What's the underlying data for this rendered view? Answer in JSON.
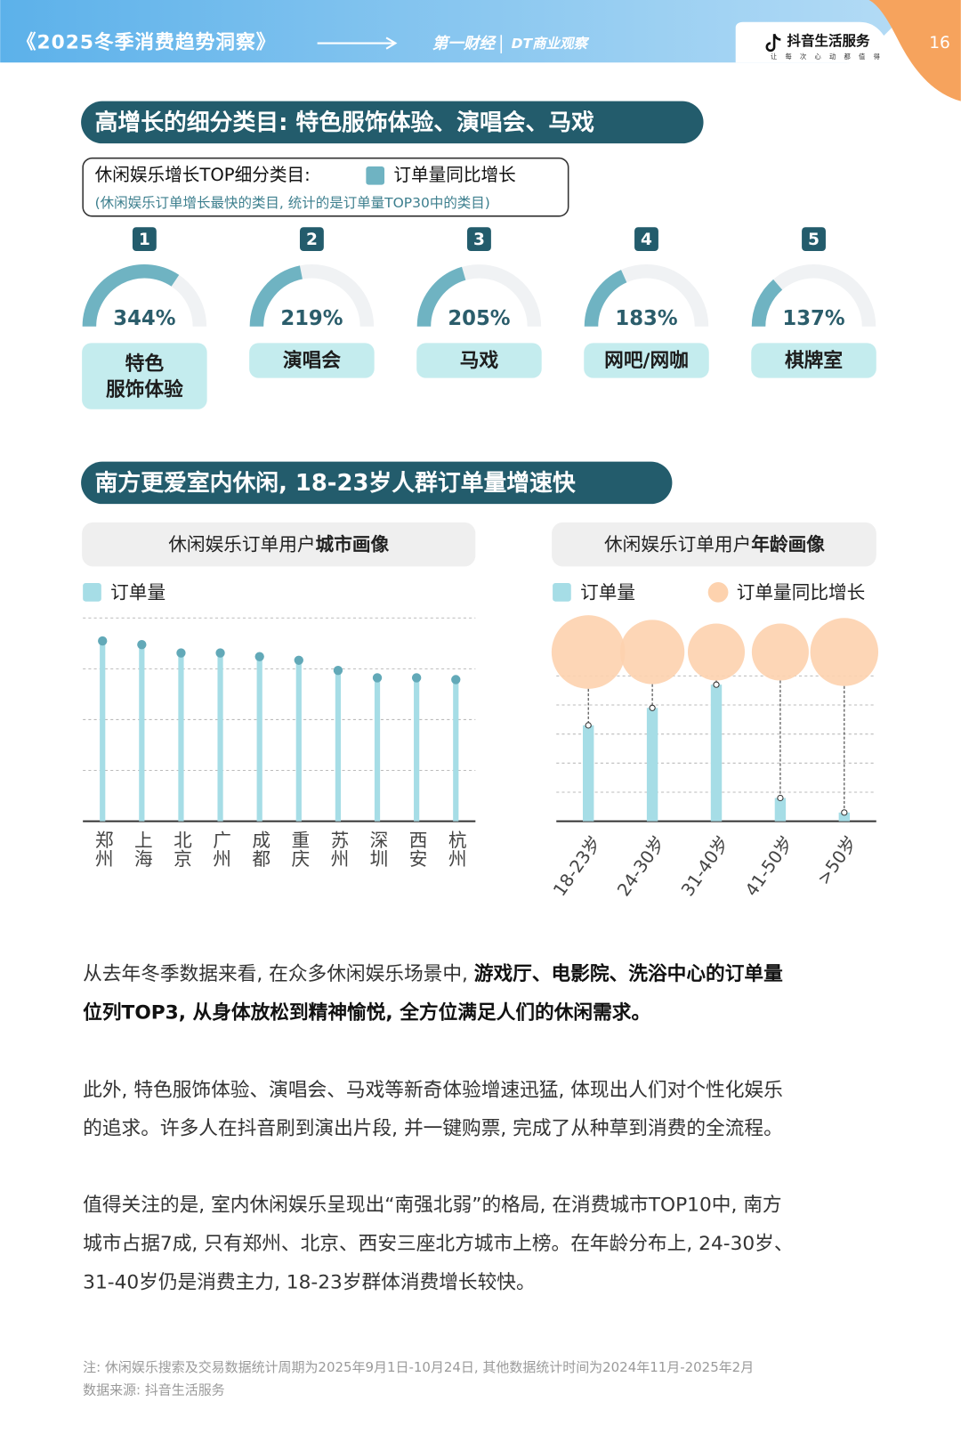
{
  "header": {
    "title": "《2025冬季消费趋势洞察》",
    "logo1": "第一财经",
    "logo2": "DT商业观察",
    "brand": "抖音生活服务",
    "tagline": "让每次心动都值得",
    "page": "16"
  },
  "sections": [
    {
      "title": "高增长的细分类目: 特色服饰体验、演唱会、马戏"
    },
    {
      "title": "南方更爱室内休闲, 18-23岁人群订单量增速快"
    }
  ],
  "chart_data": [
    {
      "type": "gauge",
      "title": "休闲娱乐增长TOP细分类目:",
      "subtitle": "(休闲娱乐订单增长最快的类目, 统计的是订单量TOP30中的类目)",
      "series_name": "订单量同比增长",
      "color": "#6fb3c2",
      "ranks": [
        1,
        2,
        3,
        4,
        5
      ],
      "categories": [
        "特色\n服饰体验",
        "演唱会",
        "马戏",
        "网吧/网咖",
        "棋牌室"
      ],
      "values": [
        344,
        219,
        205,
        183,
        137
      ],
      "value_labels": [
        "344%",
        "219%",
        "205%",
        "183%",
        "137%"
      ],
      "ylim": [
        0,
        500
      ]
    },
    {
      "type": "lollipop",
      "title": [
        "休闲娱乐订单用户",
        "城市画像"
      ],
      "categories": [
        "郑州",
        "上海",
        "北京",
        "广州",
        "成都",
        "重庆",
        "苏州",
        "深圳",
        "西安",
        "杭州"
      ],
      "series": [
        {
          "name": "订单量",
          "color": "#a6dde6",
          "values": [
            88.7,
            86.9,
            82.8,
            82.8,
            81,
            79.2,
            74.2,
            70.6,
            70.6,
            69.7
          ]
        }
      ],
      "ylim": [
        0,
        100
      ],
      "yticks": [
        25,
        50,
        75,
        100
      ],
      "grid": true
    },
    {
      "type": "bar_bubble",
      "title": [
        "休闲娱乐订单用户",
        "年龄画像"
      ],
      "categories": [
        "18-23岁",
        "24-30岁",
        "31-40岁",
        "41-50岁",
        ">50岁"
      ],
      "series": [
        {
          "name": "订单量",
          "color": "#a6dde6",
          "values": [
            3.3,
            3.9,
            4.7,
            0.8,
            0.3
          ]
        },
        {
          "name": "订单量同比增长",
          "color": "#fdd2ae",
          "values": [
            40,
            35,
            31,
            31,
            37
          ]
        }
      ],
      "ylim": [
        0,
        5
      ],
      "yticks": [
        1,
        2,
        3,
        4,
        5
      ],
      "grid": true
    }
  ],
  "paragraphs": [
    [
      [
        {
          "text": "从去年冬季数据来看, 在众多休闲娱乐场景中, ",
          "bold": false
        },
        {
          "text": "游戏厅、电影院、洗浴中心的订单量",
          "bold": true
        }
      ],
      [
        {
          "text": "位列TOP3, 从身体放松到精神愉悦, 全方位满足人们的休闲需求。",
          "bold": true
        }
      ]
    ],
    [
      [
        {
          "text": "此外, 特色服饰体验、演唱会、马戏等新奇体验增速迅猛, 体现出人们对个性化娱乐",
          "bold": false
        }
      ],
      [
        {
          "text": "的追求。许多人在抖音刷到演出片段, 并一键购票, 完成了从种草到消费的全流程。",
          "bold": false
        }
      ]
    ],
    [
      [
        {
          "text": "值得关注的是, 室内休闲娱乐呈现出“南强北弱”的格局, 在消费城市TOP10中, 南方",
          "bold": false
        }
      ],
      [
        {
          "text": "城市占据7成, 只有郑州、北京、西安三座北方城市上榜。在年龄分布上, 24-30岁、",
          "bold": false
        }
      ],
      [
        {
          "text": "31-40岁仍是消费主力, 18-23岁群体消费增长较快。",
          "bold": false
        }
      ]
    ]
  ],
  "footnotes": [
    "注: 休闲娱乐搜索及交易数据统计周期为2025年9月1日-10月24日, 其他数据统计时间为2024年11月-2025年2月",
    "数据来源: 抖音生活服务"
  ]
}
